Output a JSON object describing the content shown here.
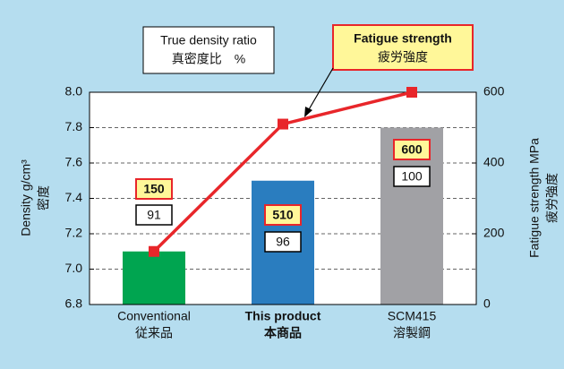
{
  "chart_data": {
    "type": "bar",
    "categories": [
      [
        "Conventional",
        "従来品"
      ],
      [
        "This product",
        "本商品"
      ],
      [
        "SCM415",
        "溶製鋼"
      ]
    ],
    "bold_category": 1,
    "ylabel": [
      "Density  g/cm³",
      "密度"
    ],
    "y2label": [
      "Fatigue strength  MPa",
      "疲労強度"
    ],
    "ylim": [
      6.8,
      8.0
    ],
    "yticks": [
      6.8,
      {
        "value": 7,
        "label": "7.0"
      },
      7.2,
      7.4,
      7.6,
      7.8,
      {
        "value": 8,
        "label": "8.0"
      }
    ],
    "y2lim": [
      0,
      600
    ],
    "y2ticks": [
      0,
      200,
      400,
      600
    ],
    "grid": true,
    "series": [
      {
        "name": "Density",
        "type": "bar",
        "colors": [
          "#00a550",
          "#2a7dbf",
          "#a1a1a5"
        ],
        "values": [
          7.1,
          7.5,
          7.8
        ]
      },
      {
        "name": [
          "Fatigue strength",
          "疲労強度"
        ],
        "type": "line",
        "axis": "y2",
        "color": "#e8262a",
        "values": [
          150,
          510,
          600
        ]
      }
    ],
    "ratio": {
      "name": [
        "True density ratio",
        "真密度比　%"
      ],
      "values": [
        91,
        96,
        100
      ]
    }
  }
}
